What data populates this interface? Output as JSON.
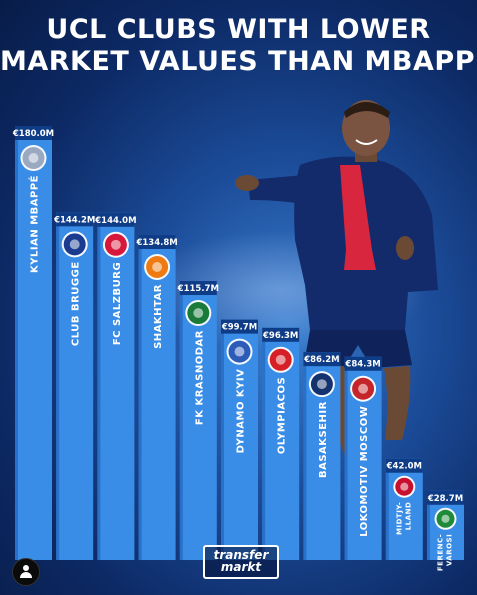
{
  "title": {
    "line1": "UCL CLUBS WITH LOWER",
    "line2": "MARKET VALUES THAN MBAPPÉ"
  },
  "logo": {
    "line1": "transfer",
    "line2": "markt"
  },
  "colors": {
    "bar": "#3a8de6",
    "bar_dark": "#1d5fb8",
    "badge": "#0f3c86",
    "background": "#0d2a66"
  },
  "chart_data": {
    "type": "bar",
    "title": "UCL CLUBS WITH LOWER MARKET VALUES THAN MBAPPÉ",
    "categories": [
      "KYLIAN MBAPPÉ",
      "CLUB BRUGGE",
      "FC SALZBURG",
      "SHAKHTAR",
      "FK KRASNODAR",
      "DYNAMO KYIV",
      "OLYMPIACOS",
      "BASAKSEHIR",
      "LOKOMOTIV MOSCOW",
      "MIDTJYLLAND",
      "FERENCVAROSI"
    ],
    "category_display": [
      "KYLIAN MBAPPÉ",
      "CLUB BRUGGE",
      "FC SALZBURG",
      "SHAKHTAR",
      "FK KRASNODAR",
      "DYNAMO KYIV",
      "OLYMPIACOS",
      "BASAKSEHIR",
      "LOKOMOTIV MOSCOW",
      "MIDTJY-|LLAND",
      "FERENC-|VAROSI"
    ],
    "values": [
      180.0,
      144.2,
      144.0,
      134.8,
      115.7,
      99.7,
      96.3,
      86.2,
      84.3,
      42.0,
      28.7
    ],
    "value_labels": [
      "€180.0M",
      "€144.2M",
      "€144.0M",
      "€134.8M",
      "€115.7M",
      "€99.7M",
      "€96.3M",
      "€86.2M",
      "€84.3M",
      "€42.0M",
      "€28.7M"
    ],
    "crest_icons": [
      "mbappe-avatar-icon",
      "club-brugge-crest-icon",
      "salzburg-crest-icon",
      "shakhtar-crest-icon",
      "krasnodar-crest-icon",
      "dynamo-kyiv-crest-icon",
      "olympiacos-crest-icon",
      "basaksehir-crest-icon",
      "lokomotiv-crest-icon",
      "midtjylland-crest-icon",
      "ferencvaros-crest-icon"
    ],
    "crest_colors": [
      "#9aa8c0",
      "#1a3b8f",
      "#d8183a",
      "#f07a12",
      "#1a7a3a",
      "#2c5bb8",
      "#d61f26",
      "#13326e",
      "#c4242a",
      "#c8102e",
      "#1f8b3a"
    ],
    "ylim": [
      0,
      180
    ],
    "grid": false,
    "legend": "none"
  }
}
